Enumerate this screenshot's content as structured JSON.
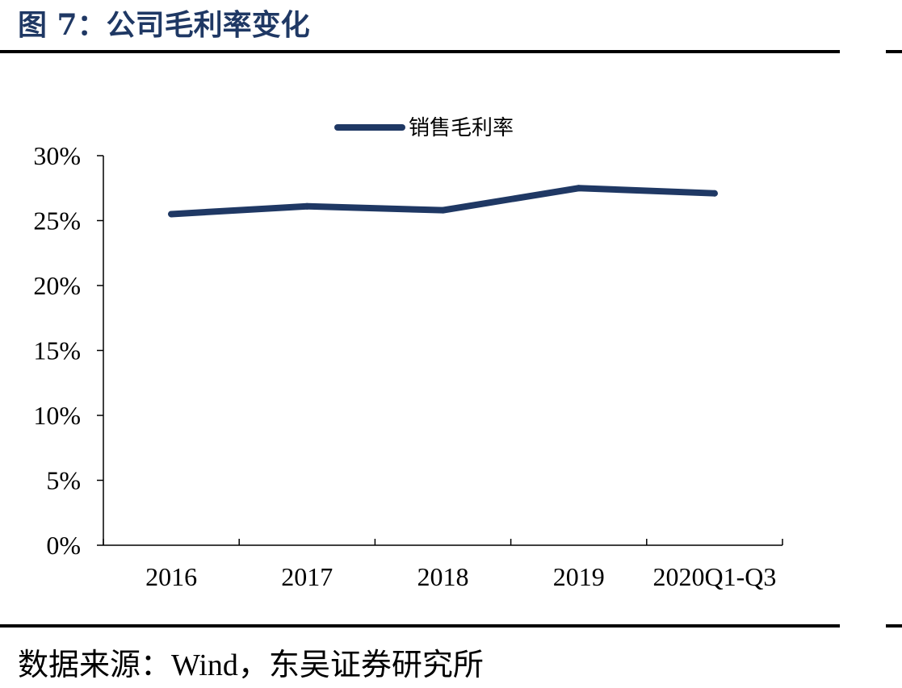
{
  "header": {
    "title": "图 7：公司毛利率变化"
  },
  "footer": {
    "source": "数据来源：Wind，东吴证券研究所"
  },
  "chart_data": {
    "type": "line",
    "categories": [
      "2016",
      "2017",
      "2018",
      "2019",
      "2020Q1-Q3"
    ],
    "series": [
      {
        "name": "销售毛利率",
        "values": [
          25.5,
          26.1,
          25.8,
          27.5,
          27.1
        ],
        "color": "#1f3864"
      }
    ],
    "ylim": [
      0,
      30
    ],
    "yticks": [
      0,
      5,
      10,
      15,
      20,
      25,
      30
    ],
    "ytick_labels": [
      "0%",
      "5%",
      "10%",
      "15%",
      "20%",
      "25%",
      "30%"
    ],
    "legend_position": "top",
    "grid": false
  }
}
